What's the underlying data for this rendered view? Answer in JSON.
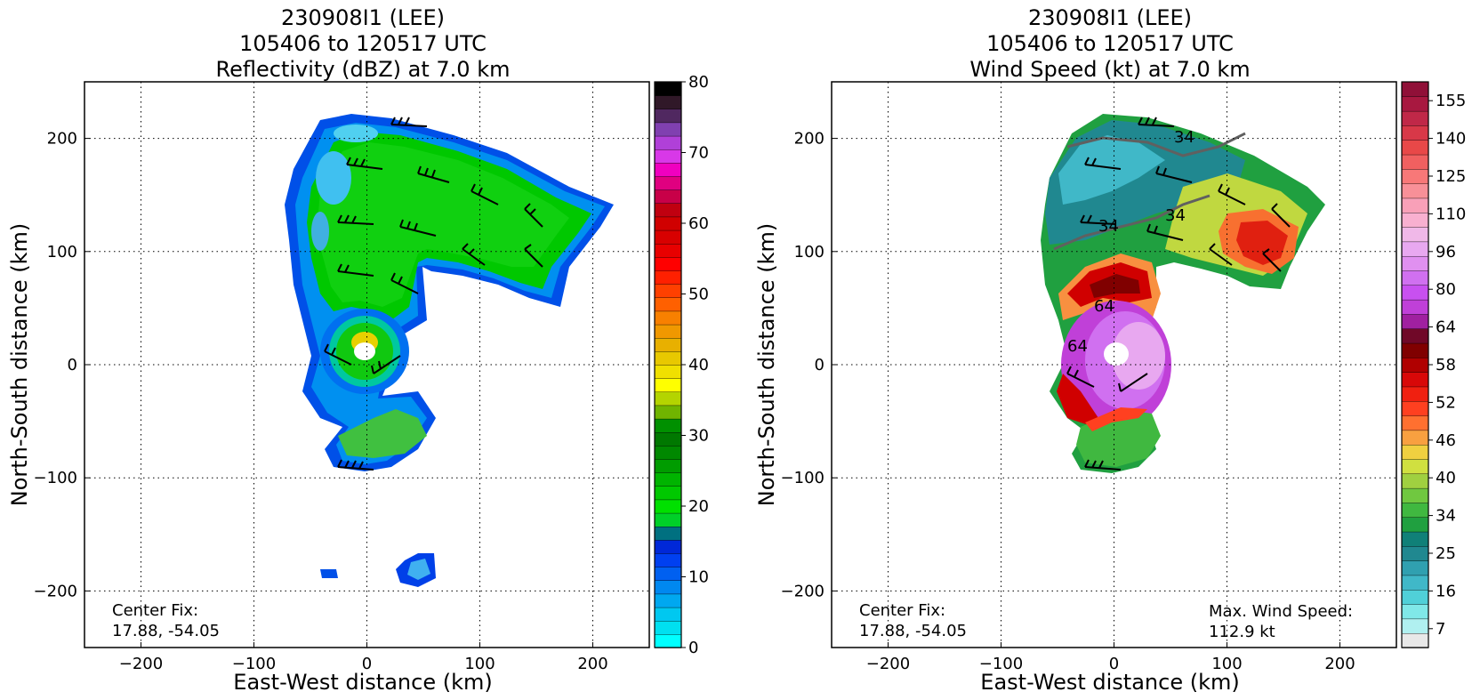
{
  "chart_data": [
    {
      "type": "heatmap",
      "panel": "left",
      "title": [
        "230908I1 (LEE)",
        "105406 to 120517 UTC",
        "Reflectivity (dBZ) at 7.0 km"
      ],
      "xlabel": "East-West distance (km)",
      "ylabel": "North-South distance (km)",
      "xlim": [
        -250,
        250
      ],
      "ylim": [
        -250,
        250
      ],
      "xticks": [
        -200,
        -100,
        0,
        100,
        200
      ],
      "yticks": [
        -200,
        -100,
        0,
        100,
        200
      ],
      "xtick_labels": [
        "−200",
        "−100",
        "0",
        "100",
        "200"
      ],
      "ytick_labels": [
        "−200",
        "−100",
        "0",
        "100",
        "200"
      ],
      "grid": true,
      "annotation": [
        "Center Fix:",
        "17.88, -54.05"
      ],
      "colorbar": {
        "min": 0,
        "max": 80,
        "tick_values": [
          0,
          10,
          20,
          30,
          40,
          50,
          60,
          70,
          80
        ],
        "tick_labels": [
          "0",
          "10",
          "20",
          "30",
          "40",
          "50",
          "60",
          "70",
          "80"
        ],
        "colors": [
          "#00ffff",
          "#00e0f0",
          "#00c8f0",
          "#00a8f0",
          "#0088f0",
          "#0060f0",
          "#0040f0",
          "#0028d8",
          "#007080",
          "#00d028",
          "#00e000",
          "#00c800",
          "#00b400",
          "#009c00",
          "#008800",
          "#007800",
          "#009000",
          "#70b400",
          "#b4d400",
          "#ffff00",
          "#f0e000",
          "#e8c800",
          "#e8b000",
          "#f09800",
          "#f88000",
          "#ff6000",
          "#ff4000",
          "#ff2000",
          "#ff0000",
          "#e80000",
          "#d80000",
          "#d00000",
          "#c00010",
          "#c80048",
          "#e00080",
          "#f000c0",
          "#d838e8",
          "#b040d8",
          "#8040b0",
          "#502860",
          "#301828",
          "#000000"
        ]
      }
    },
    {
      "type": "heatmap",
      "panel": "right",
      "title": [
        "230908I1 (LEE)",
        "105406 to 120517 UTC",
        "Wind Speed (kt) at 7.0 km"
      ],
      "xlabel": "East-West distance (km)",
      "ylabel": "North-South distance (km)",
      "xlim": [
        -250,
        250
      ],
      "ylim": [
        -250,
        250
      ],
      "xticks": [
        -200,
        -100,
        0,
        100,
        200
      ],
      "yticks": [
        -200,
        -100,
        0,
        100,
        200
      ],
      "xtick_labels": [
        "−200",
        "−100",
        "0",
        "100",
        "200"
      ],
      "ytick_labels": [
        "−200",
        "−100",
        "0",
        "100",
        "200"
      ],
      "grid": true,
      "annotation": [
        "Center Fix:",
        "17.88, -54.05"
      ],
      "max_wind_annotation": [
        "Max. Wind Speed:",
        "112.9 kt"
      ],
      "contour_labels": [
        "34",
        "34",
        "34",
        "34",
        "64",
        "64"
      ],
      "colorbar": {
        "tick_labels": [
          "7",
          "16",
          "25",
          "34",
          "40",
          "46",
          "52",
          "58",
          "64",
          "80",
          "96",
          "110",
          "125",
          "140",
          "155"
        ],
        "colors": [
          "#e8e8e8",
          "#b0f0f0",
          "#80e8e8",
          "#50d0d8",
          "#40b8c8",
          "#30a0b0",
          "#208890",
          "#108078",
          "#20a040",
          "#40b840",
          "#70c840",
          "#a0d040",
          "#d0e040",
          "#f0d040",
          "#f8a040",
          "#ff7030",
          "#ff4020",
          "#f02010",
          "#d80808",
          "#b00000",
          "#800000",
          "#700828",
          "#a020a0",
          "#c040d8",
          "#c850f0",
          "#d070f0",
          "#e090f0",
          "#e8a8f0",
          "#f0b8e8",
          "#f8b0d0",
          "#f8a0b8",
          "#f89098",
          "#f87878",
          "#f06060",
          "#e84848",
          "#d83848",
          "#c02848",
          "#a81840",
          "#901038"
        ]
      }
    }
  ]
}
